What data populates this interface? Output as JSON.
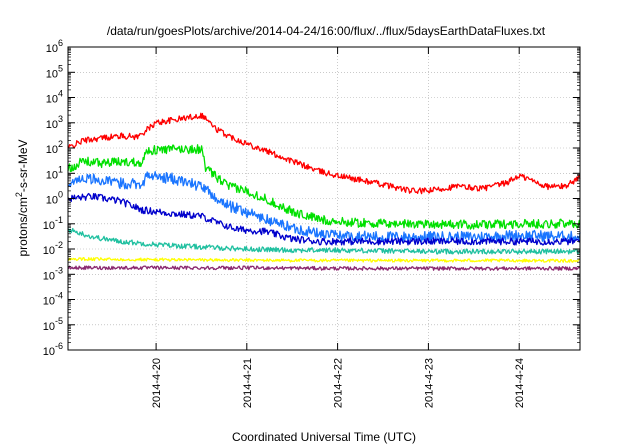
{
  "chart_data": {
    "type": "line",
    "title": "/data/run/goesPlots/archive/2014-04-24/16:00/flux/../flux/5daysEarthDataFluxes.txt",
    "xlabel": "Coordinated Universal Time (UTC)",
    "ylabel": {
      "prefix": "protons/cm",
      "sup": "2",
      "suffix": "-s-sr-MeV"
    },
    "y_scale": "log",
    "ylim_exp": [
      -6,
      6
    ],
    "y_ticks": [
      {
        "exp": -6,
        "base": "10",
        "sup": "-6"
      },
      {
        "exp": -5,
        "base": "10",
        "sup": "-5"
      },
      {
        "exp": -4,
        "base": "10",
        "sup": "-4"
      },
      {
        "exp": -3,
        "base": "10",
        "sup": "-3"
      },
      {
        "exp": -2,
        "base": "10",
        "sup": "-2"
      },
      {
        "exp": -1,
        "base": "10",
        "sup": "-1"
      },
      {
        "exp": 0,
        "base": "10",
        "sup": "0"
      },
      {
        "exp": 1,
        "base": "10",
        "sup": "1"
      },
      {
        "exp": 2,
        "base": "10",
        "sup": "2"
      },
      {
        "exp": 3,
        "base": "10",
        "sup": "3"
      },
      {
        "exp": 4,
        "base": "10",
        "sup": "4"
      },
      {
        "exp": 5,
        "base": "10",
        "sup": "5"
      },
      {
        "exp": 6,
        "base": "10",
        "sup": "6"
      }
    ],
    "x_range_days": [
      -0.97,
      4.67
    ],
    "x_ticks": [
      {
        "day": 0,
        "label": "2014-4-20"
      },
      {
        "day": 1,
        "label": "2014-4-21"
      },
      {
        "day": 2,
        "label": "2014-4-22"
      },
      {
        "day": 3,
        "label": "2014-4-23"
      },
      {
        "day": 4,
        "label": "2014-4-24"
      }
    ],
    "grid": true,
    "series": [
      {
        "color": "#ff0000",
        "noise": 0.12,
        "points": [
          [
            -0.97,
            100
          ],
          [
            -0.8,
            200
          ],
          [
            -0.6,
            250
          ],
          [
            -0.4,
            300
          ],
          [
            -0.2,
            280
          ],
          [
            0,
            1000
          ],
          [
            0.3,
            1500
          ],
          [
            0.5,
            2000
          ],
          [
            0.55,
            1500
          ],
          [
            0.65,
            600
          ],
          [
            0.8,
            300
          ],
          [
            1.0,
            150
          ],
          [
            1.2,
            80
          ],
          [
            1.5,
            30
          ],
          [
            1.8,
            12
          ],
          [
            2.0,
            8
          ],
          [
            2.3,
            5
          ],
          [
            2.6,
            3
          ],
          [
            2.8,
            2
          ],
          [
            3.0,
            2
          ],
          [
            3.3,
            3
          ],
          [
            3.6,
            2.5
          ],
          [
            3.85,
            4
          ],
          [
            4.0,
            8
          ],
          [
            4.1,
            6
          ],
          [
            4.3,
            3
          ],
          [
            4.5,
            3
          ],
          [
            4.67,
            7
          ]
        ]
      },
      {
        "color": "#00e000",
        "noise": 0.18,
        "points": [
          [
            -0.97,
            15
          ],
          [
            -0.8,
            30
          ],
          [
            -0.6,
            25
          ],
          [
            -0.4,
            28
          ],
          [
            -0.15,
            28
          ],
          [
            -0.1,
            80
          ],
          [
            0.2,
            90
          ],
          [
            0.5,
            90
          ],
          [
            0.55,
            15
          ],
          [
            0.8,
            3
          ],
          [
            1.0,
            2
          ],
          [
            1.2,
            1
          ],
          [
            1.5,
            0.3
          ],
          [
            1.8,
            0.15
          ],
          [
            2.0,
            0.12
          ],
          [
            2.5,
            0.1
          ],
          [
            3.0,
            0.1
          ],
          [
            3.5,
            0.09
          ],
          [
            4.0,
            0.1
          ],
          [
            4.67,
            0.1
          ]
        ]
      },
      {
        "color": "#1a75ff",
        "noise": 0.22,
        "points": [
          [
            -0.97,
            4
          ],
          [
            -0.8,
            7
          ],
          [
            -0.6,
            5
          ],
          [
            -0.4,
            4
          ],
          [
            -0.15,
            4
          ],
          [
            -0.1,
            8
          ],
          [
            0.2,
            6
          ],
          [
            0.5,
            3
          ],
          [
            0.6,
            1.5
          ],
          [
            0.8,
            0.5
          ],
          [
            1.0,
            0.3
          ],
          [
            1.2,
            0.15
          ],
          [
            1.5,
            0.07
          ],
          [
            1.8,
            0.04
          ],
          [
            2.0,
            0.035
          ],
          [
            2.5,
            0.03
          ],
          [
            3.0,
            0.03
          ],
          [
            3.5,
            0.03
          ],
          [
            4.0,
            0.035
          ],
          [
            4.67,
            0.03
          ]
        ]
      },
      {
        "color": "#0000cc",
        "noise": 0.14,
        "points": [
          [
            -0.97,
            1.0
          ],
          [
            -0.7,
            1.2
          ],
          [
            -0.4,
            0.8
          ],
          [
            -0.15,
            0.35
          ],
          [
            0.2,
            0.25
          ],
          [
            0.5,
            0.2
          ],
          [
            0.7,
            0.1
          ],
          [
            0.9,
            0.06
          ],
          [
            1.2,
            0.05
          ],
          [
            1.5,
            0.025
          ],
          [
            1.8,
            0.02
          ],
          [
            2.2,
            0.02
          ],
          [
            3.0,
            0.02
          ],
          [
            4.0,
            0.02
          ],
          [
            4.67,
            0.02
          ]
        ]
      },
      {
        "color": "#20c0a0",
        "noise": 0.1,
        "points": [
          [
            -0.97,
            0.06
          ],
          [
            -0.7,
            0.03
          ],
          [
            -0.4,
            0.02
          ],
          [
            0.0,
            0.015
          ],
          [
            0.5,
            0.012
          ],
          [
            1.0,
            0.01
          ],
          [
            1.5,
            0.009
          ],
          [
            2.0,
            0.009
          ],
          [
            3.0,
            0.008
          ],
          [
            4.0,
            0.008
          ],
          [
            4.67,
            0.008
          ]
        ]
      },
      {
        "color": "#ffff00",
        "noise": 0.06,
        "points": [
          [
            -0.97,
            0.004
          ],
          [
            0,
            0.0038
          ],
          [
            1,
            0.0036
          ],
          [
            2,
            0.0035
          ],
          [
            3,
            0.0035
          ],
          [
            4,
            0.0035
          ],
          [
            4.67,
            0.0034
          ]
        ]
      },
      {
        "color": "#8b2a70",
        "noise": 0.07,
        "points": [
          [
            -0.97,
            0.0018
          ],
          [
            0,
            0.0018
          ],
          [
            1,
            0.0018
          ],
          [
            2,
            0.0017
          ],
          [
            3,
            0.0017
          ],
          [
            4,
            0.0017
          ],
          [
            4.67,
            0.0017
          ]
        ]
      }
    ]
  }
}
